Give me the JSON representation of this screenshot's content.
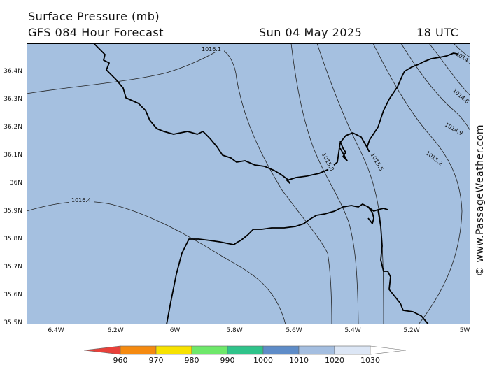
{
  "header": {
    "title": "Surface Pressure (mb)",
    "subtitle": "GFS 084 Hour Forecast",
    "date": "Sun 04 May 2025",
    "time": "18 UTC"
  },
  "watermark": "© www.PassageWeather.com",
  "map": {
    "lat_range": [
      35.5,
      36.5
    ],
    "lon_range": [
      -6.5,
      -5.0
    ],
    "y_ticks": [
      "36.4N",
      "36.3N",
      "36.2N",
      "36.1N",
      "36N",
      "35.9N",
      "35.8N",
      "35.7N",
      "35.6N",
      "35.5N"
    ],
    "x_ticks": [
      "6.4W",
      "6.2W",
      "6W",
      "5.8W",
      "5.6W",
      "5.4W",
      "5.2W",
      "5W"
    ],
    "ocean_color": "#a5c0e0",
    "land_fill_color": "#a5c0e0",
    "coast_color": "#000000",
    "isobar_color": "#222222",
    "isobar_labels": [
      "1016.1",
      "1016.4",
      "1015.8",
      "1015.5",
      "1015.2",
      "1014.9",
      "1014.6",
      "1014.3"
    ]
  },
  "legend": {
    "labels": [
      "960",
      "970",
      "980",
      "990",
      "1000",
      "1010",
      "1020",
      "1030"
    ],
    "colors": [
      "#e8403a",
      "#f58a10",
      "#f7e200",
      "#6ee86a",
      "#2fc38a",
      "#5e8cc8",
      "#a4bee0",
      "#dce6f5",
      "#ffffff"
    ]
  }
}
